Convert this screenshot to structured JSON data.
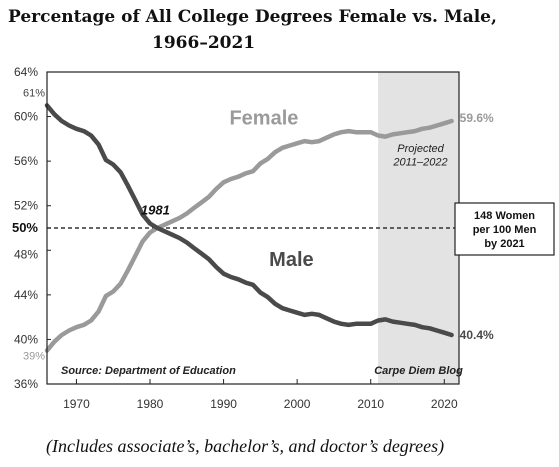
{
  "title_line1": "Percentage of All College Degrees Female vs. Male,",
  "title_line2": "1966–2021",
  "caption": "(Includes associate’s, bachelor’s, and doctor’s degrees)",
  "colors": {
    "female": "#9a9a9a",
    "male": "#4a4a4a",
    "shade": "#e3e3e3",
    "frame": "#222222"
  },
  "chart_data": {
    "type": "line",
    "title": "Percentage of All College Degrees Female vs. Male, 1966–2021",
    "xlim": [
      1966,
      2022
    ],
    "ylim": [
      36,
      64
    ],
    "x_ticks": [
      1970,
      1980,
      1990,
      2000,
      2010,
      2020
    ],
    "y_ticks": [
      {
        "value": 36,
        "label": "36%"
      },
      {
        "value": 40,
        "label": "40%"
      },
      {
        "value": 44,
        "label": "44%"
      },
      {
        "value": 48,
        "label": "48%"
      },
      {
        "value": 52,
        "label": "52%"
      },
      {
        "value": 56,
        "label": "56%"
      },
      {
        "value": 60,
        "label": "60%"
      },
      {
        "value": 64,
        "label": "64%"
      }
    ],
    "reference_line": {
      "value": 50,
      "label": "50%"
    },
    "shaded_region": {
      "x": [
        2011,
        2022
      ],
      "label_line1": "Projected",
      "label_line2": "2011–2022"
    },
    "series": [
      {
        "name": "Female",
        "x": [
          1966,
          1967,
          1968,
          1969,
          1970,
          1971,
          1972,
          1973,
          1974,
          1975,
          1976,
          1977,
          1978,
          1979,
          1980,
          1981,
          1982,
          1983,
          1984,
          1985,
          1986,
          1987,
          1988,
          1989,
          1990,
          1991,
          1992,
          1993,
          1994,
          1995,
          1996,
          1997,
          1998,
          1999,
          2000,
          2001,
          2002,
          2003,
          2004,
          2005,
          2006,
          2007,
          2008,
          2009,
          2010,
          2011,
          2012,
          2013,
          2014,
          2015,
          2016,
          2017,
          2018,
          2019,
          2020,
          2021
        ],
        "values": [
          39.0,
          39.8,
          40.4,
          40.8,
          41.1,
          41.3,
          41.7,
          42.5,
          43.9,
          44.3,
          45.0,
          46.2,
          47.5,
          48.8,
          49.6,
          50.0,
          50.3,
          50.6,
          50.9,
          51.3,
          51.8,
          52.3,
          52.8,
          53.5,
          54.1,
          54.4,
          54.6,
          54.9,
          55.1,
          55.8,
          56.2,
          56.8,
          57.2,
          57.4,
          57.6,
          57.8,
          57.7,
          57.8,
          58.1,
          58.4,
          58.6,
          58.7,
          58.6,
          58.6,
          58.6,
          58.3,
          58.2,
          58.4,
          58.5,
          58.6,
          58.7,
          58.9,
          59.0,
          59.2,
          59.4,
          59.6
        ]
      },
      {
        "name": "Male",
        "x": [
          1966,
          1967,
          1968,
          1969,
          1970,
          1971,
          1972,
          1973,
          1974,
          1975,
          1976,
          1977,
          1978,
          1979,
          1980,
          1981,
          1982,
          1983,
          1984,
          1985,
          1986,
          1987,
          1988,
          1989,
          1990,
          1991,
          1992,
          1993,
          1994,
          1995,
          1996,
          1997,
          1998,
          1999,
          2000,
          2001,
          2002,
          2003,
          2004,
          2005,
          2006,
          2007,
          2008,
          2009,
          2010,
          2011,
          2012,
          2013,
          2014,
          2015,
          2016,
          2017,
          2018,
          2019,
          2020,
          2021
        ],
        "values": [
          61.0,
          60.2,
          59.6,
          59.2,
          58.9,
          58.7,
          58.3,
          57.5,
          56.1,
          55.7,
          55.0,
          53.8,
          52.5,
          51.2,
          50.4,
          50.0,
          49.7,
          49.4,
          49.1,
          48.7,
          48.2,
          47.7,
          47.2,
          46.5,
          45.9,
          45.6,
          45.4,
          45.1,
          44.9,
          44.2,
          43.8,
          43.2,
          42.8,
          42.6,
          42.4,
          42.2,
          42.3,
          42.2,
          41.9,
          41.6,
          41.4,
          41.3,
          41.4,
          41.4,
          41.4,
          41.7,
          41.8,
          41.6,
          41.5,
          41.4,
          41.3,
          41.1,
          41.0,
          40.8,
          40.6,
          40.4
        ]
      }
    ],
    "series_labels": {
      "female": "Female",
      "male": "Male"
    },
    "start_labels": {
      "male": "61%",
      "female": "39%"
    },
    "end_labels": {
      "female": "59.6%",
      "male": "40.4%"
    },
    "crossover": {
      "x": 1981,
      "y": 50,
      "label": "1981"
    },
    "callout": {
      "line1": "148 Women",
      "line2": "per 100 Men",
      "line3": "by 2021"
    },
    "source_note": "Source: Department of Education",
    "credit_note": "Carpe Diem Blog"
  }
}
